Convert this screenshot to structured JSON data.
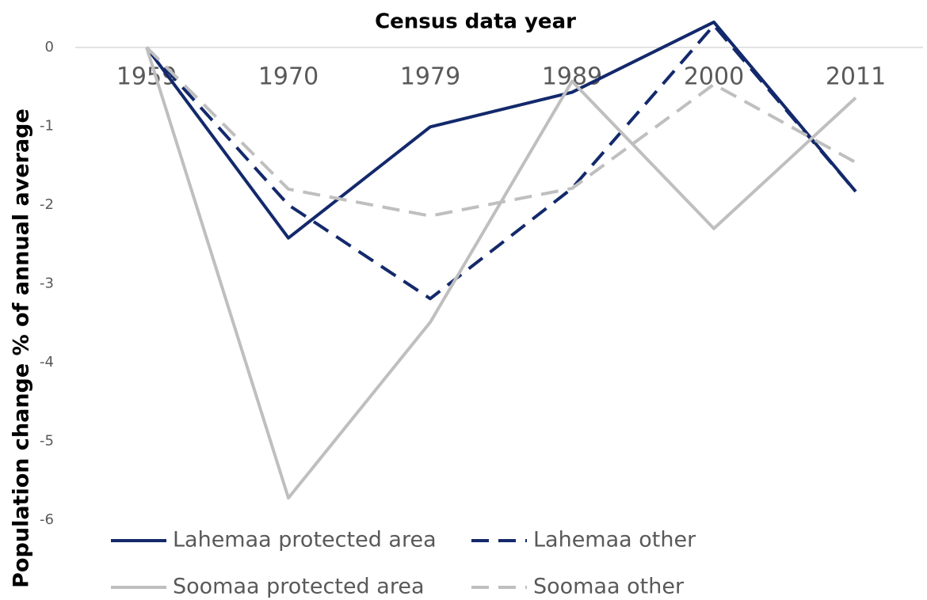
{
  "chart_data": {
    "type": "line",
    "title": "Census data year",
    "y_label": "Population change % of annual average",
    "categories": [
      "1959",
      "1970",
      "1979",
      "1989",
      "2000",
      "2011"
    ],
    "series": [
      {
        "name": "Lahemaa protected area",
        "color": "#13296b",
        "dashed": false,
        "values": [
          0,
          -2.42,
          -1.01,
          -0.57,
          0.32,
          -1.83
        ]
      },
      {
        "name": "Lahemaa other",
        "color": "#13296b",
        "dashed": true,
        "values": [
          0,
          -2.0,
          -3.19,
          -1.79,
          0.28,
          -1.83
        ]
      },
      {
        "name": "Soomaa protected area",
        "color": "#bfbfbf",
        "dashed": false,
        "values": [
          0,
          -5.72,
          -3.49,
          -0.43,
          -2.3,
          -0.64
        ]
      },
      {
        "name": "Soomaa other",
        "color": "#bfbfbf",
        "dashed": true,
        "values": [
          0,
          -1.8,
          -2.14,
          -1.79,
          -0.47,
          -1.46
        ]
      }
    ],
    "ylim": [
      -6,
      0.4
    ],
    "yticks": [
      -6,
      -5,
      -4,
      -3,
      -2,
      -1,
      0
    ],
    "legend": "bottom"
  }
}
